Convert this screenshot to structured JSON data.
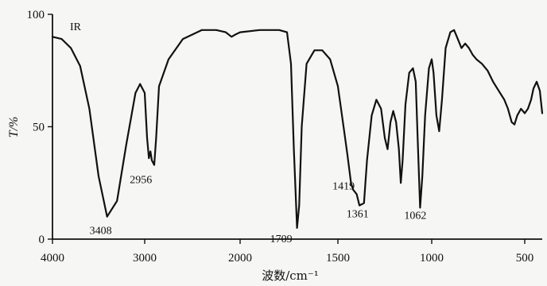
{
  "chart_data": {
    "type": "line",
    "annotation": "IR",
    "ylabel": "T/%",
    "xlabel": "波数/cm⁻¹",
    "x_axis": {
      "min": 4000,
      "max": 450,
      "reversed": true,
      "ticks": [
        4000,
        3000,
        2000,
        1500,
        1000,
        500
      ]
    },
    "y_axis": {
      "min": 0,
      "max": 100,
      "ticks": [
        0,
        50,
        100
      ]
    },
    "grid": false,
    "legend": "none",
    "peak_labels": [
      {
        "x": 3408,
        "y": 10,
        "text": "3408"
      },
      {
        "x": 2956,
        "y": 32,
        "text": "2956"
      },
      {
        "x": 1709,
        "y": 5,
        "text": "1709"
      },
      {
        "x": 1419,
        "y": 22,
        "text": "1419"
      },
      {
        "x": 1361,
        "y": 16,
        "text": "1361"
      },
      {
        "x": 1062,
        "y": 14,
        "text": "1062"
      }
    ],
    "series": [
      {
        "points": [
          [
            4000,
            90
          ],
          [
            3900,
            89
          ],
          [
            3800,
            85
          ],
          [
            3700,
            77
          ],
          [
            3600,
            58
          ],
          [
            3500,
            28
          ],
          [
            3408,
            10
          ],
          [
            3300,
            17
          ],
          [
            3200,
            42
          ],
          [
            3100,
            65
          ],
          [
            3050,
            69
          ],
          [
            3000,
            65
          ],
          [
            2975,
            45
          ],
          [
            2956,
            36
          ],
          [
            2940,
            39
          ],
          [
            2925,
            35
          ],
          [
            2900,
            33
          ],
          [
            2880,
            45
          ],
          [
            2850,
            68
          ],
          [
            2750,
            80
          ],
          [
            2600,
            89
          ],
          [
            2400,
            93
          ],
          [
            2250,
            93
          ],
          [
            2150,
            92
          ],
          [
            2090,
            90
          ],
          [
            2050,
            91
          ],
          [
            2000,
            92
          ],
          [
            1900,
            93
          ],
          [
            1800,
            93
          ],
          [
            1760,
            92
          ],
          [
            1740,
            78
          ],
          [
            1725,
            40
          ],
          [
            1709,
            5
          ],
          [
            1698,
            15
          ],
          [
            1685,
            50
          ],
          [
            1660,
            78
          ],
          [
            1620,
            84
          ],
          [
            1580,
            84
          ],
          [
            1540,
            80
          ],
          [
            1500,
            68
          ],
          [
            1470,
            50
          ],
          [
            1450,
            38
          ],
          [
            1430,
            25
          ],
          [
            1419,
            22
          ],
          [
            1400,
            20
          ],
          [
            1385,
            15
          ],
          [
            1361,
            16
          ],
          [
            1345,
            35
          ],
          [
            1320,
            55
          ],
          [
            1295,
            62
          ],
          [
            1270,
            58
          ],
          [
            1250,
            45
          ],
          [
            1235,
            40
          ],
          [
            1220,
            52
          ],
          [
            1205,
            57
          ],
          [
            1190,
            52
          ],
          [
            1175,
            40
          ],
          [
            1165,
            25
          ],
          [
            1155,
            35
          ],
          [
            1140,
            60
          ],
          [
            1120,
            74
          ],
          [
            1100,
            76
          ],
          [
            1085,
            70
          ],
          [
            1075,
            45
          ],
          [
            1062,
            14
          ],
          [
            1050,
            28
          ],
          [
            1035,
            55
          ],
          [
            1015,
            76
          ],
          [
            1000,
            80
          ],
          [
            990,
            74
          ],
          [
            975,
            55
          ],
          [
            960,
            48
          ],
          [
            945,
            62
          ],
          [
            925,
            85
          ],
          [
            900,
            92
          ],
          [
            880,
            93
          ],
          [
            860,
            89
          ],
          [
            840,
            85
          ],
          [
            820,
            87
          ],
          [
            800,
            85
          ],
          [
            780,
            82
          ],
          [
            760,
            80
          ],
          [
            730,
            78
          ],
          [
            700,
            75
          ],
          [
            670,
            70
          ],
          [
            640,
            66
          ],
          [
            610,
            62
          ],
          [
            590,
            58
          ],
          [
            570,
            52
          ],
          [
            555,
            51
          ],
          [
            540,
            55
          ],
          [
            520,
            58
          ],
          [
            500,
            56
          ],
          [
            480,
            58
          ],
          [
            460,
            62
          ],
          [
            445,
            67
          ],
          [
            425,
            70
          ],
          [
            405,
            66
          ],
          [
            390,
            56
          ]
        ]
      }
    ]
  }
}
